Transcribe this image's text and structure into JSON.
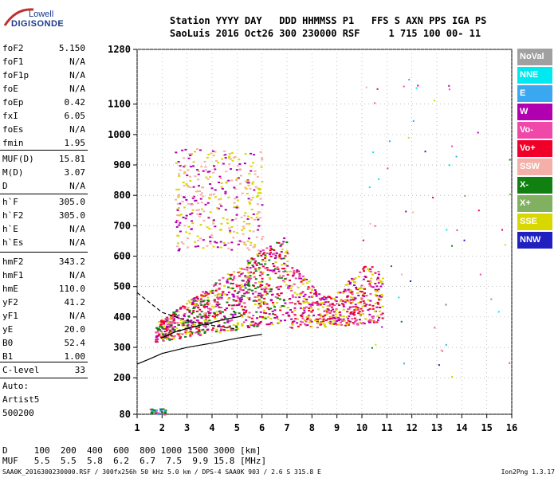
{
  "logo": {
    "line1": "Lowell",
    "line2": "DIGISONDE"
  },
  "header": {
    "row1": "Station YYYY DAY   DDD HHMMSS P1   FFS S AXN PPS IGA PS",
    "row2": "SaoLuis 2016 Oct26 300 230000 RSF     1 715 100 00- 11"
  },
  "params": [
    {
      "k": "foF2",
      "v": "5.150"
    },
    {
      "k": "foF1",
      "v": "N/A"
    },
    {
      "k": "foF1p",
      "v": "N/A"
    },
    {
      "k": "foE",
      "v": "N/A"
    },
    {
      "k": "foEp",
      "v": "0.42"
    },
    {
      "k": "fxI",
      "v": "6.05"
    },
    {
      "k": "foEs",
      "v": "N/A"
    },
    {
      "k": "fmin",
      "v": "1.95"
    },
    {
      "k": "MUF(D)",
      "v": "15.81"
    },
    {
      "k": "M(D)",
      "v": "3.07"
    },
    {
      "k": "D",
      "v": "N/A"
    },
    {
      "k": "h`F",
      "v": "305.0"
    },
    {
      "k": "h`F2",
      "v": "305.0"
    },
    {
      "k": "h`E",
      "v": "N/A"
    },
    {
      "k": "h`Es",
      "v": "N/A"
    },
    {
      "k": "hmF2",
      "v": "343.2"
    },
    {
      "k": "hmF1",
      "v": "N/A"
    },
    {
      "k": "hmE",
      "v": "110.0"
    },
    {
      "k": "yF2",
      "v": "41.2"
    },
    {
      "k": "yF1",
      "v": "N/A"
    },
    {
      "k": "yE",
      "v": "20.0"
    },
    {
      "k": "B0",
      "v": "52.4"
    },
    {
      "k": "B1",
      "v": "1.00"
    },
    {
      "k": "C-level",
      "v": "33"
    }
  ],
  "auto": {
    "label": "Auto:",
    "artist": "Artist5",
    "version": "500200"
  },
  "legend": [
    {
      "label": "NoVal",
      "color": "#a0a0a0"
    },
    {
      "label": "NNE",
      "color": "#00e8f0"
    },
    {
      "label": "E",
      "color": "#3aa8f0"
    },
    {
      "label": "W",
      "color": "#b000b0"
    },
    {
      "label": "Vo-",
      "color": "#f048a8"
    },
    {
      "label": "Vo+",
      "color": "#f00028"
    },
    {
      "label": "SSW",
      "color": "#f4b0a8"
    },
    {
      "label": "X-",
      "color": "#108010"
    },
    {
      "label": "X+",
      "color": "#80b060"
    },
    {
      "label": "SSE",
      "color": "#d8d800"
    },
    {
      "label": "NNW",
      "color": "#2020c0"
    }
  ],
  "muf_table": {
    "d_row": "D     100  200  400  600  800 1000 1500 3000 [km]",
    "muf_row": "MUF   5.5  5.5  5.8  6.2  6.7  7.5  9.9 15.8 [MHz]"
  },
  "footer": {
    "left": "SAA0K_2016300230000.RSF / 300fx256h 50 kHz 5.0 km / DPS-4 SAA0K 903 / 2.6 S 315.8 E",
    "right": "Ion2Png 1.3.17"
  },
  "chart_data": {
    "type": "scatter",
    "xlim": [
      1,
      16
    ],
    "ylim": [
      80,
      1280
    ],
    "x_ticks": [
      1,
      2,
      3,
      4,
      5,
      6,
      7,
      8,
      9,
      10,
      11,
      12,
      13,
      14,
      15,
      16
    ],
    "y_ticks": [
      80,
      200,
      300,
      400,
      500,
      600,
      700,
      800,
      900,
      1000,
      1100,
      1280
    ],
    "grid": true,
    "legend_position": "right",
    "traces": [
      {
        "region": "F-layer main trace",
        "x_range": [
          1.7,
          7.0
        ],
        "y_range": [
          300,
          640
        ],
        "colors": [
          "#f00028",
          "#f048a8",
          "#b000b0",
          "#d8d800",
          "#108010"
        ]
      },
      {
        "region": "F-layer spread",
        "x_range": [
          7.0,
          10.8
        ],
        "y_range": [
          350,
          600
        ],
        "colors": [
          "#f00028",
          "#f048a8",
          "#b000b0",
          "#d8d800"
        ]
      },
      {
        "region": "Multihop echoes",
        "x_range": [
          2.5,
          6.0
        ],
        "y_range": [
          620,
          960
        ],
        "colors": [
          "#d8d800",
          "#b000b0",
          "#f4b0a8"
        ]
      },
      {
        "region": "Low-height echoes",
        "x_range": [
          1.5,
          2.1
        ],
        "y_range": [
          80,
          100
        ],
        "colors": [
          "#3aa8f0",
          "#f048a8",
          "#108010"
        ]
      }
    ],
    "profile_curve": [
      [
        1,
        245
      ],
      [
        1.5,
        262
      ],
      [
        2,
        280
      ],
      [
        3,
        300
      ],
      [
        4,
        314
      ],
      [
        5,
        330
      ],
      [
        6,
        343
      ]
    ],
    "trace_curve": [
      [
        1.95,
        330
      ],
      [
        2.5,
        350
      ],
      [
        3,
        362
      ],
      [
        3.5,
        372
      ],
      [
        4,
        382
      ],
      [
        4.5,
        392
      ],
      [
        5.15,
        402
      ]
    ],
    "dashed_curve": [
      [
        1,
        480
      ],
      [
        2,
        415
      ],
      [
        3,
        388
      ],
      [
        4,
        372
      ],
      [
        5,
        360
      ]
    ]
  }
}
